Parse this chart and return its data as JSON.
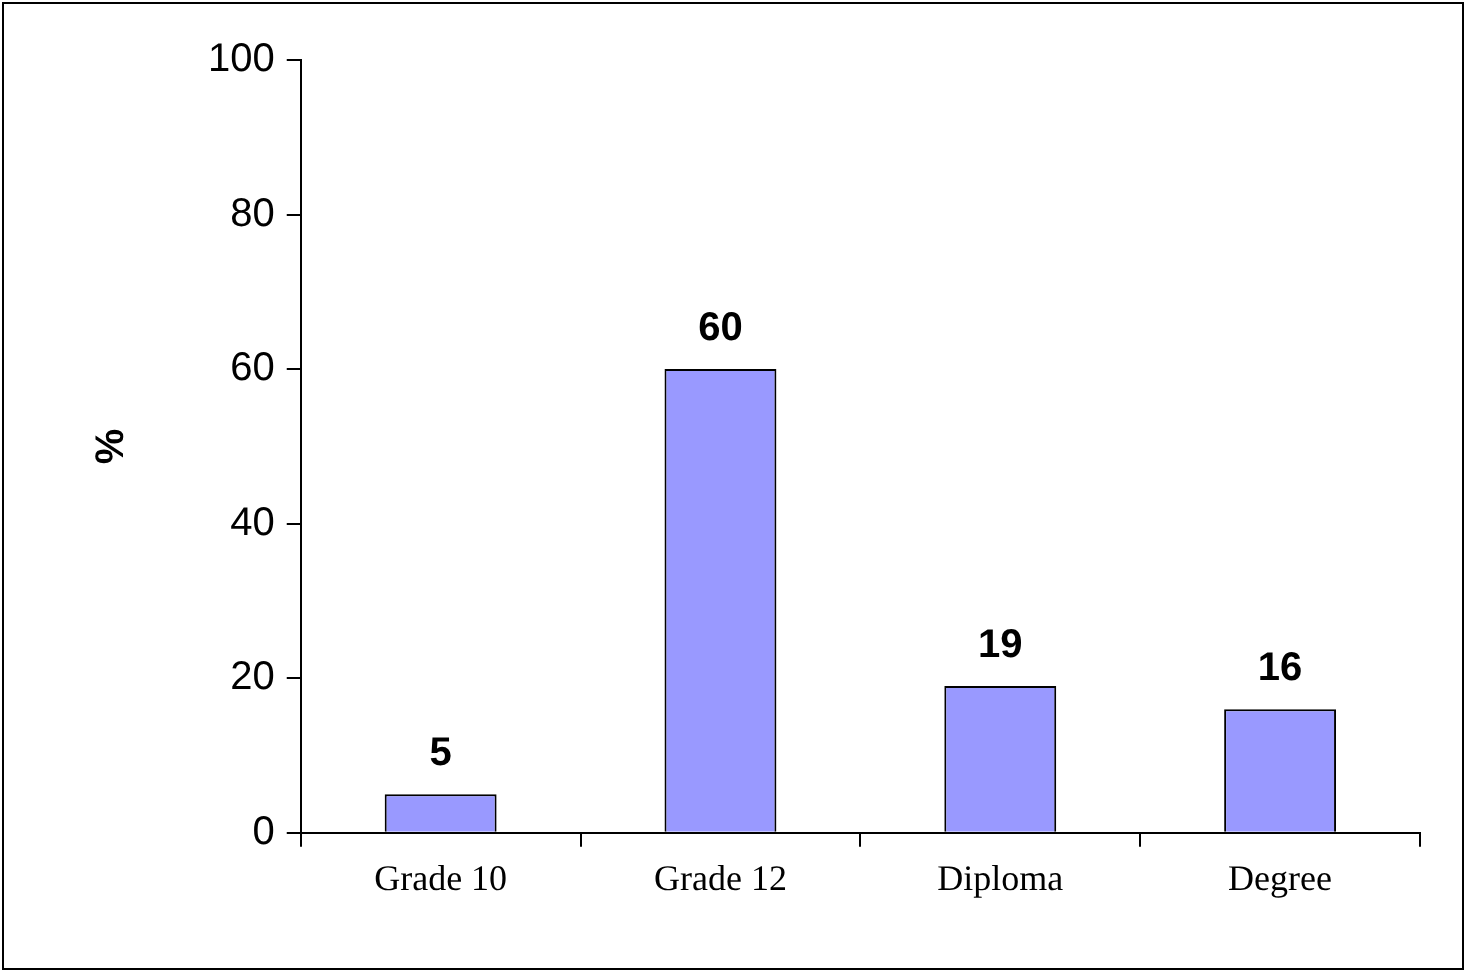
{
  "chart_data": {
    "type": "bar",
    "ylabel": "%",
    "categories": [
      "Grade 10",
      "Grade 12",
      "Diploma",
      "Degree"
    ],
    "values": [
      5,
      60,
      19,
      16
    ],
    "color": "#9999ff",
    "ylim": [
      0,
      100
    ],
    "yticks": [
      0,
      20,
      40,
      60,
      80,
      100
    ],
    "grid": false,
    "legend": false,
    "data_labels": true
  }
}
